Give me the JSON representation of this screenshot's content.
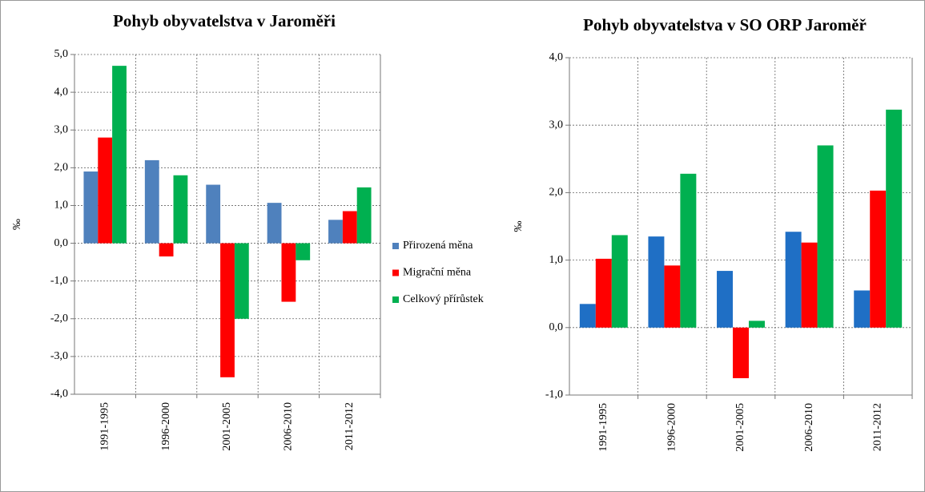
{
  "chart_data": [
    {
      "type": "bar",
      "title": "Pohyb obyvatelstva v Jaroměři",
      "y_label": "‰",
      "categories": [
        "1991-1995",
        "1996-2000",
        "2001-2005",
        "2006-2010",
        "2011-2012"
      ],
      "series": [
        {
          "name": "Přirozená měna",
          "color": "#4f81bd",
          "values": [
            1.9,
            2.2,
            1.55,
            1.07,
            0.62
          ]
        },
        {
          "name": "Migrační měna",
          "color": "#ff0000",
          "values": [
            2.8,
            -0.35,
            -3.55,
            -1.55,
            0.85
          ]
        },
        {
          "name": "Celkový přírůstek",
          "color": "#00b050",
          "values": [
            4.7,
            1.8,
            -2.0,
            -0.45,
            1.48
          ]
        }
      ],
      "ylim": [
        -4,
        5
      ],
      "yticks": [
        {
          "value": -4,
          "label": "-4,0"
        },
        {
          "value": -3,
          "label": "-3,0"
        },
        {
          "value": -2,
          "label": "-2,0"
        },
        {
          "value": -1,
          "label": "-1,0"
        },
        {
          "value": 0,
          "label": "0,0"
        },
        {
          "value": 1,
          "label": "1,0"
        },
        {
          "value": 2,
          "label": "2,0"
        },
        {
          "value": 3,
          "label": "3,0"
        },
        {
          "value": 4,
          "label": "4,0"
        },
        {
          "value": 5,
          "label": "5,0"
        }
      ],
      "grid": true,
      "legend": "right"
    },
    {
      "type": "bar",
      "title": "Pohyb obyvatelstva v SO ORP Jaroměř",
      "y_label": "‰",
      "categories": [
        "1991-1995",
        "1996-2000",
        "2001-2005",
        "2006-2010",
        "2011-2012"
      ],
      "series": [
        {
          "color": "#1f6fc5",
          "values": [
            0.35,
            1.35,
            0.84,
            1.42,
            0.55
          ]
        },
        {
          "color": "#ff0000",
          "values": [
            1.02,
            0.92,
            -0.75,
            1.26,
            2.03
          ]
        },
        {
          "color": "#00b050",
          "values": [
            1.37,
            2.28,
            0.1,
            2.7,
            3.23
          ]
        }
      ],
      "ylim": [
        -1,
        4
      ],
      "yticks": [
        {
          "value": -1,
          "label": "-1,0"
        },
        {
          "value": 0,
          "label": "0,0"
        },
        {
          "value": 1,
          "label": "1,0"
        },
        {
          "value": 2,
          "label": "2,0"
        },
        {
          "value": 3,
          "label": "3,0"
        },
        {
          "value": 4,
          "label": "4,0"
        }
      ],
      "grid": true
    }
  ]
}
